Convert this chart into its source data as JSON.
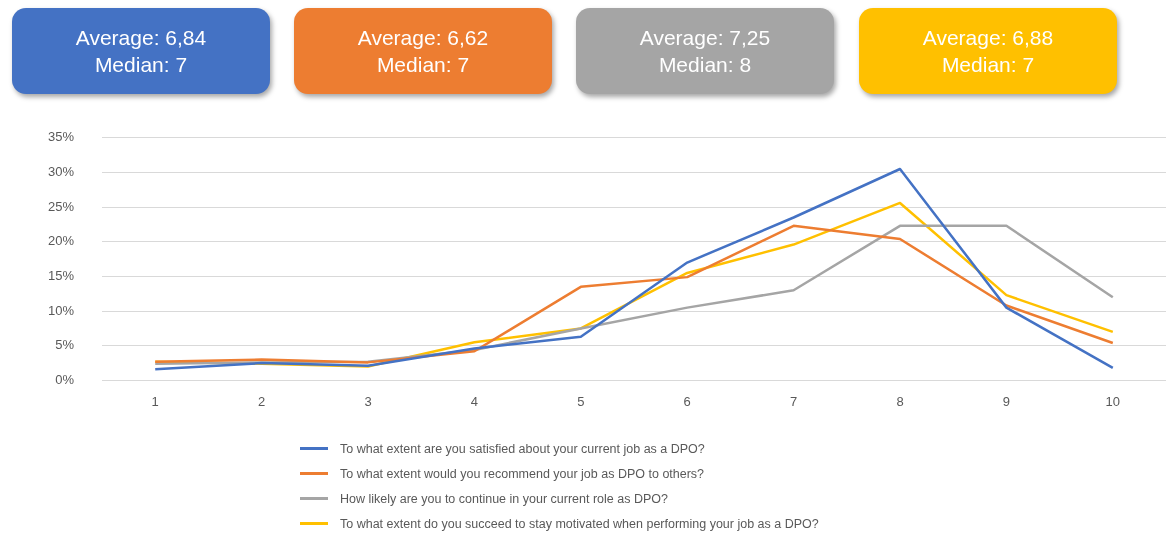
{
  "chart_data": {
    "type": "line",
    "categories": [
      "1",
      "2",
      "3",
      "4",
      "5",
      "6",
      "7",
      "8",
      "9",
      "10"
    ],
    "series": [
      {
        "name": "To what extent are you satisfied about your current job as a DPO?",
        "color": "#4472c4",
        "values": [
          1.6,
          2.5,
          2.1,
          4.6,
          6.3,
          17,
          23.5,
          30.5,
          10.5,
          1.8
        ]
      },
      {
        "name": "To what extent would you recommend your job as DPO to others?",
        "color": "#ed7d31",
        "values": [
          2.7,
          3.0,
          2.6,
          4.2,
          13.5,
          14.9,
          22.3,
          20.4,
          10.8,
          5.4
        ]
      },
      {
        "name": "How likely are you to continue in your current role as DPO?",
        "color": "#a5a5a5",
        "values": [
          2.4,
          2.6,
          2.7,
          4.4,
          7.5,
          10.5,
          13.0,
          22.3,
          22.3,
          12.0
        ]
      },
      {
        "name": "To what extent do you succeed to stay motivated when performing your job as a DPO?",
        "color": "#ffc000",
        "values": [
          2.7,
          2.4,
          2.0,
          5.5,
          7.5,
          15.5,
          19.6,
          25.6,
          12.3,
          7.0
        ]
      }
    ],
    "ylim": [
      0,
      35
    ],
    "yticks": [
      {
        "value": 0,
        "label": "0%"
      },
      {
        "value": 5,
        "label": "5%"
      },
      {
        "value": 10,
        "label": "10%"
      },
      {
        "value": 15,
        "label": "15%"
      },
      {
        "value": 20,
        "label": "20%"
      },
      {
        "value": 25,
        "label": "25%"
      },
      {
        "value": 30,
        "label": "30%"
      },
      {
        "value": 35,
        "label": "35%"
      }
    ],
    "grid": "y",
    "legend": "bottom",
    "marker": "none",
    "line_style": "solid",
    "annotations": [
      "Average: 6,84\nMedian: 7",
      "Average: 6,62\nMedian: 7",
      "Average: 7,25\nMedian: 8",
      "Average: 6,88\nMedian: 7"
    ]
  }
}
